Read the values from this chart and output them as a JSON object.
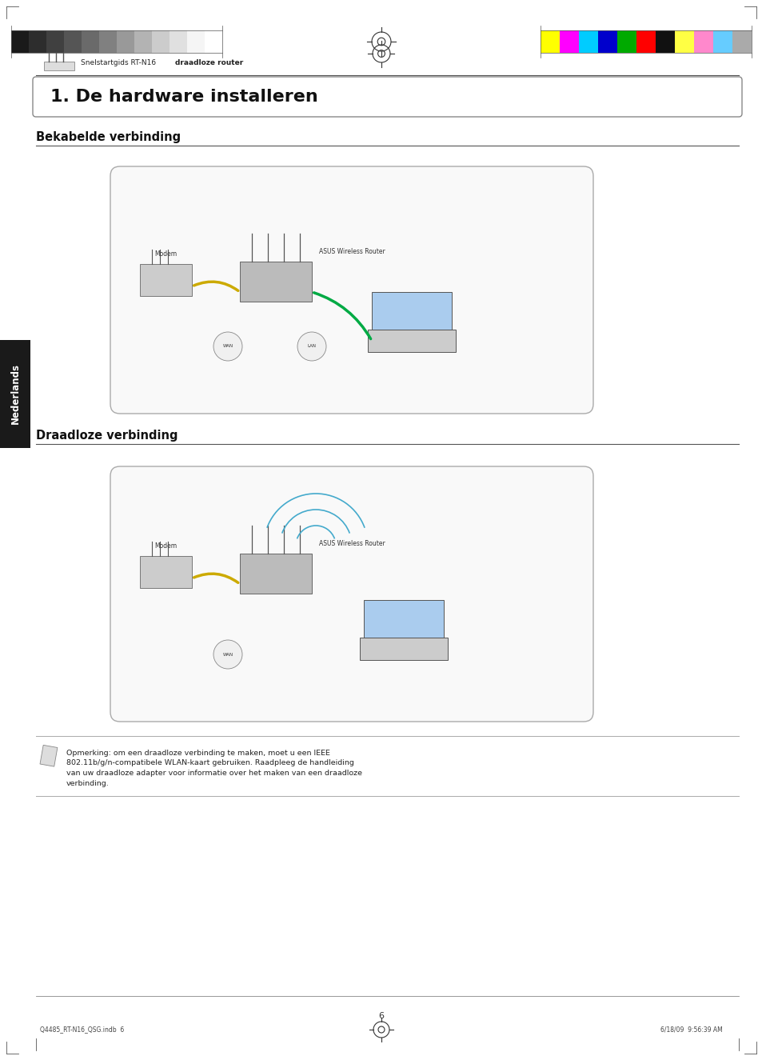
{
  "bg_color": "#ffffff",
  "page_width": 9.54,
  "page_height": 13.25,
  "header_bar_colors_left": [
    "#1a1a1a",
    "#2d2d2d",
    "#404040",
    "#555555",
    "#6a6a6a",
    "#808080",
    "#999999",
    "#b3b3b3",
    "#cccccc",
    "#e0e0e0",
    "#f5f5f5",
    "#ffffff"
  ],
  "header_bar_colors_right": [
    "#ffff00",
    "#ff00ff",
    "#00ccff",
    "#0000cc",
    "#00aa00",
    "#ff0000",
    "#111111",
    "#ffff44",
    "#ff88cc",
    "#66ccff",
    "#aaaaaa"
  ],
  "subtitle_text": "Snelstartgids RT-N16 draadloze router",
  "subtitle_bold_part": "draadloze router",
  "section_title": "1. De hardware installeren",
  "section1": "Bekabelde verbinding",
  "section2": "Draadloze verbinding",
  "note_text": "Opmerking: om een draadloze verbinding te maken, moet u een IEEE\n802.11b/g/n-compatibele WLAN-kaart gebruiken. Raadpleeg de handleiding\nvan uw draadloze adapter voor informatie over het maken van een draadloze\nverbinding.",
  "footer_left": "Q4485_RT-N16_QSG.indb  6",
  "footer_center_symbol": true,
  "footer_right": "6/18/09  9:56:39 AM",
  "page_number": "6",
  "sidebar_text": "Nederlands",
  "sidebar_bg": "#1a1a1a",
  "sidebar_text_color": "#ffffff"
}
